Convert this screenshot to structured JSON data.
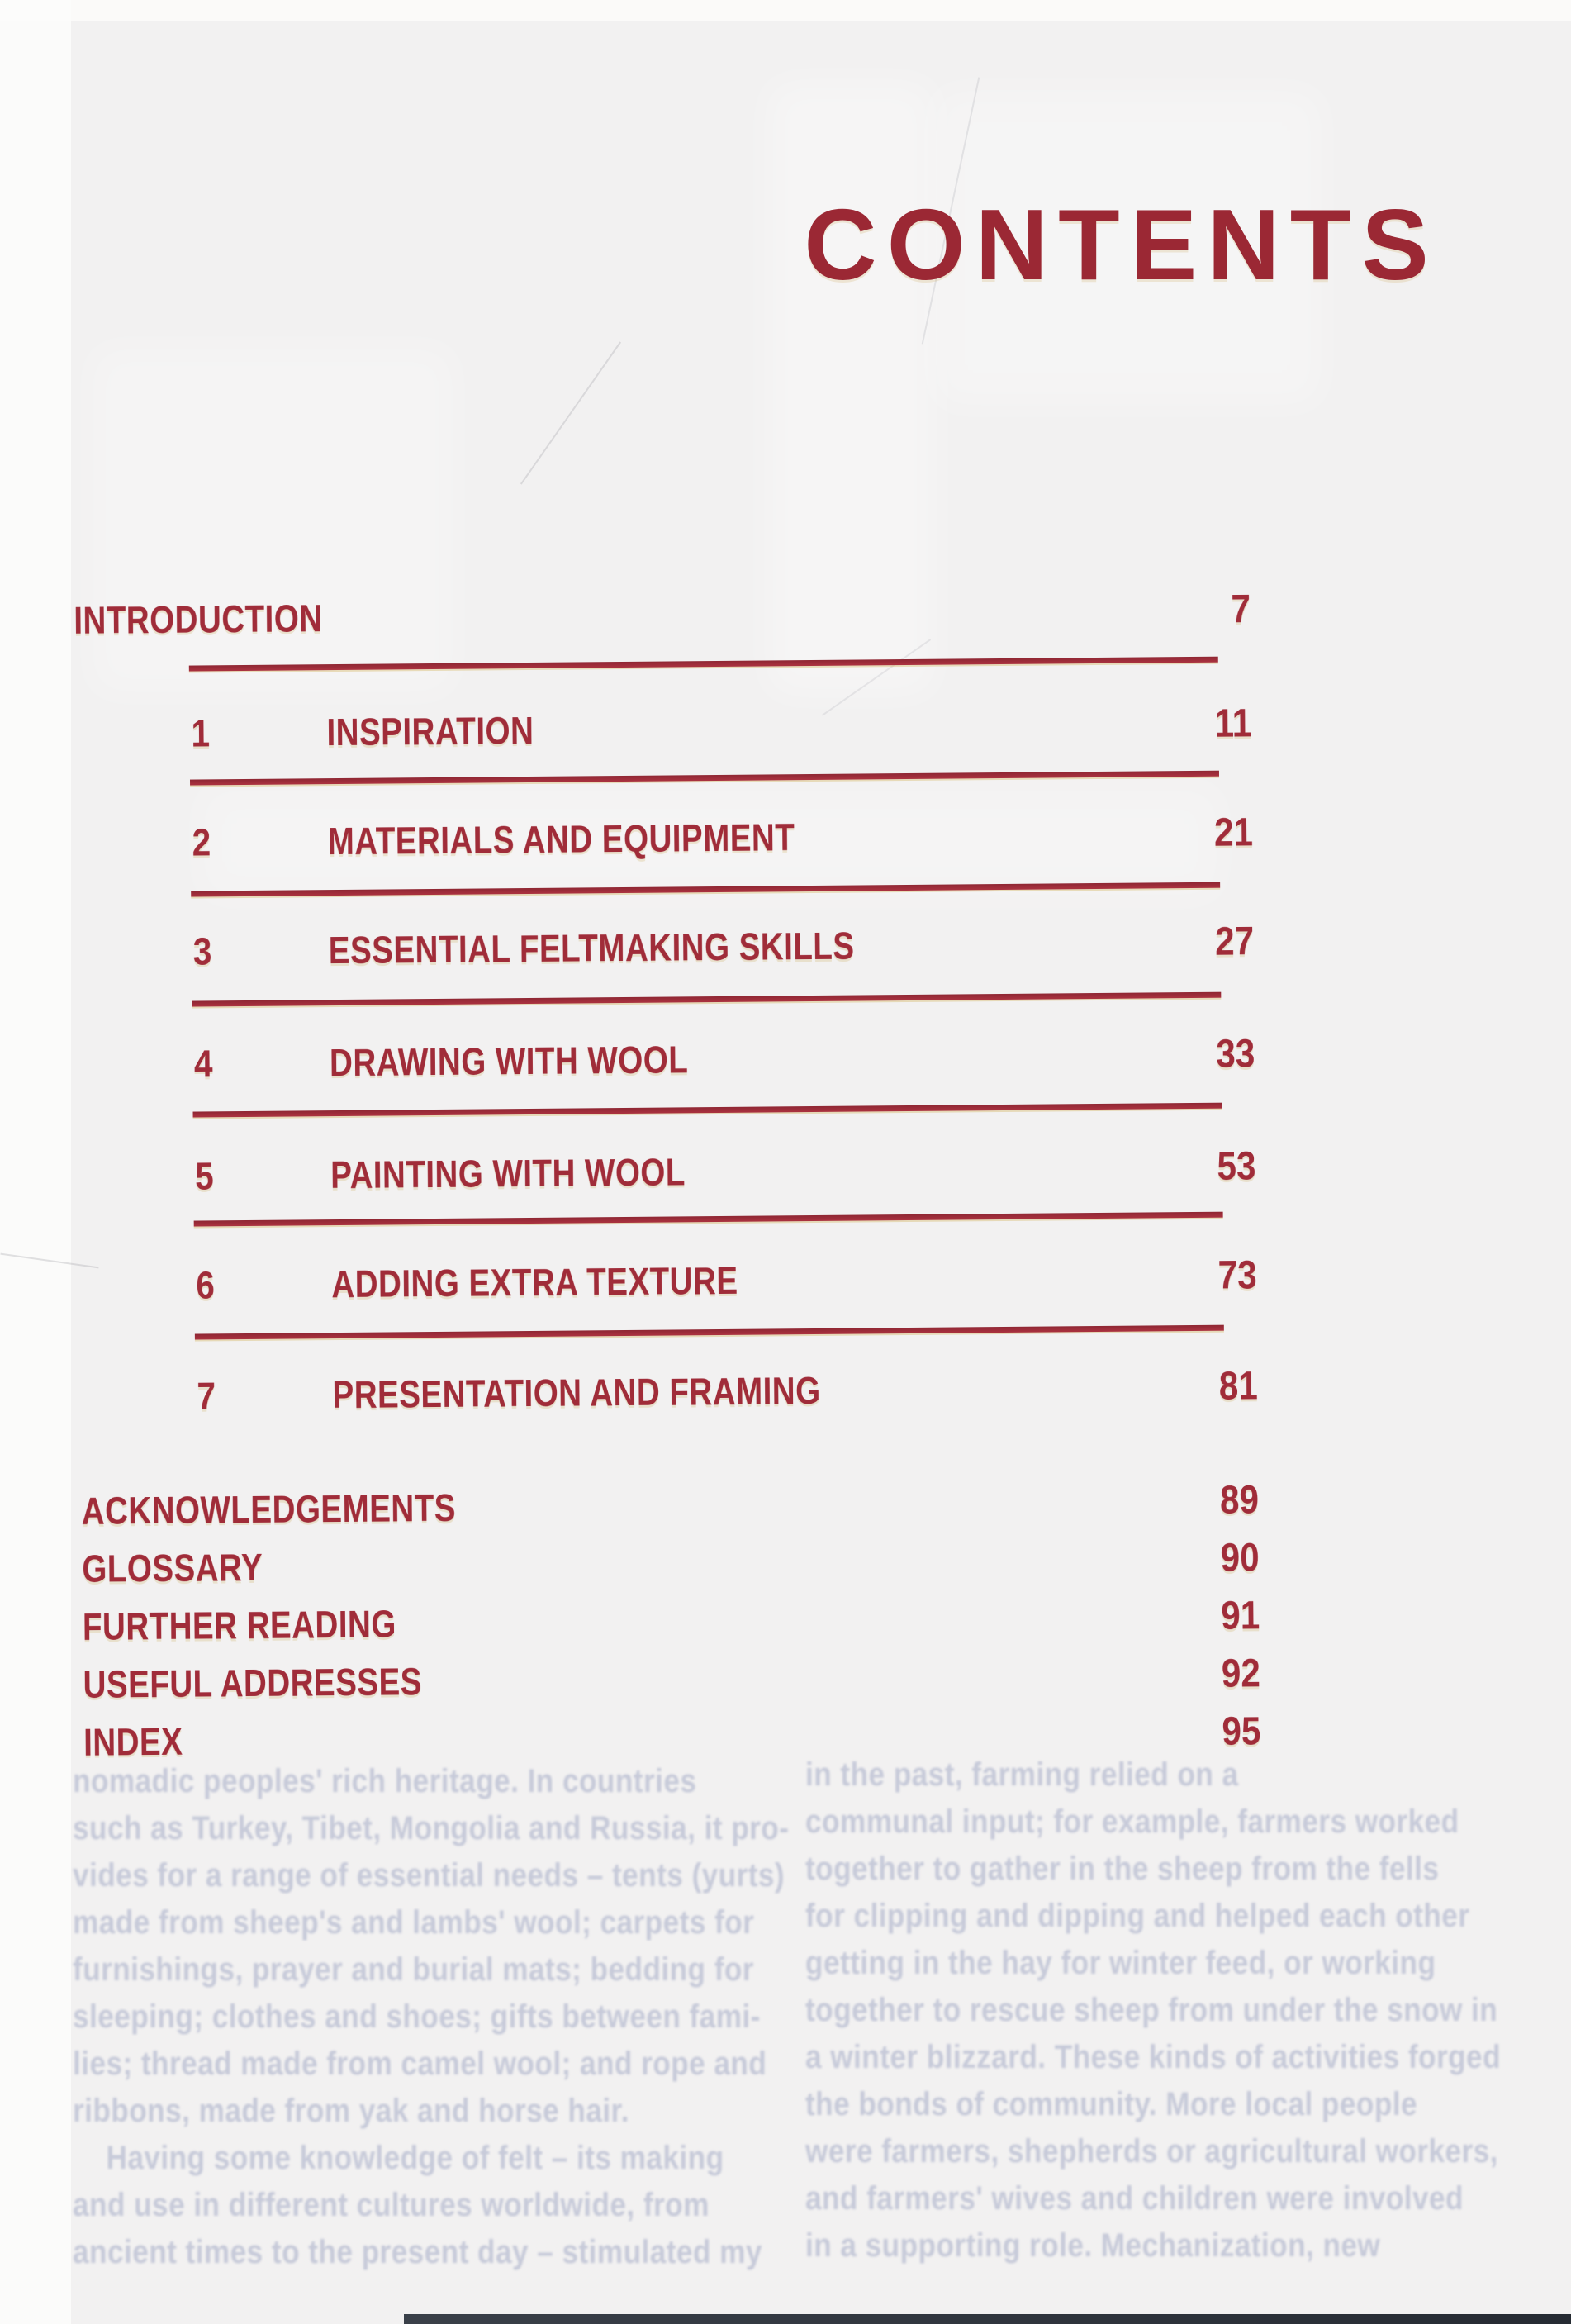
{
  "page": {
    "title": "CONTENTS",
    "accent_color": "#9b2834",
    "rule_color": "#a03140",
    "background_color": "#f2f1f1"
  },
  "toc": {
    "front": [
      {
        "label": "INTRODUCTION",
        "page": "7"
      }
    ],
    "chapters": [
      {
        "num": "1",
        "label": "INSPIRATION",
        "page": "11"
      },
      {
        "num": "2",
        "label": "MATERIALS AND EQUIPMENT",
        "page": "21"
      },
      {
        "num": "3",
        "label": "ESSENTIAL FELTMAKING SKILLS",
        "page": "27"
      },
      {
        "num": "4",
        "label": "DRAWING WITH WOOL",
        "page": "33"
      },
      {
        "num": "5",
        "label": "PAINTING WITH WOOL",
        "page": "53"
      },
      {
        "num": "6",
        "label": "ADDING EXTRA TEXTURE",
        "page": "73"
      },
      {
        "num": "7",
        "label": "PRESENTATION AND FRAMING",
        "page": "81"
      }
    ],
    "back": [
      {
        "label": "ACKNOWLEDGEMENTS",
        "page": "89"
      },
      {
        "label": "GLOSSARY",
        "page": "90"
      },
      {
        "label": "FURTHER READING",
        "page": "91"
      },
      {
        "label": "USEFUL ADDRESSES",
        "page": "92"
      },
      {
        "label": "INDEX",
        "page": "95"
      }
    ]
  },
  "bleedthrough": {
    "left_column_lines": [
      "nomadic peoples' rich heritage. In countries",
      "such as Turkey, Tibet, Mongolia and Russia, it pro-",
      "vides for a range of essential needs – tents (yurts)",
      "made from sheep's and lambs' wool; carpets for",
      "furnishings, prayer and burial mats; bedding for",
      "sleeping; clothes and shoes; gifts between fami-",
      "lies; thread made from camel wool; and rope and",
      "ribbons, made from yak and horse hair.",
      "Having some knowledge of felt – its making",
      "and use in different cultures worldwide, from",
      "ancient times to the present day – stimulated my"
    ],
    "right_column_lines": [
      "in the past, farming relied on a",
      "communal input; for example, farmers worked",
      "together to gather in the sheep from the fells",
      "for clipping and dipping and helped each other",
      "getting in the hay for winter feed, or working",
      "together to rescue sheep from under the snow in",
      "a winter blizzard. These kinds of activities forged",
      "the bonds of community. More local people",
      "were farmers, shepherds or agricultural workers,",
      "and farmers' wives and children were involved",
      "in a supporting role. Mechanization, new"
    ]
  }
}
